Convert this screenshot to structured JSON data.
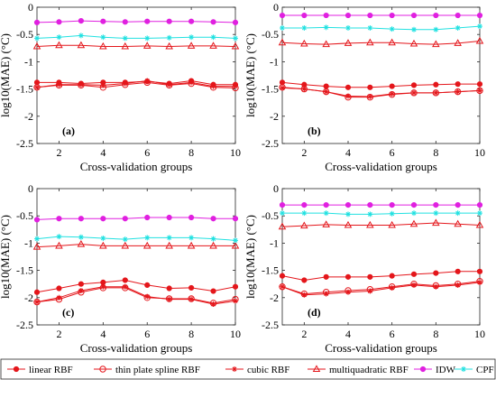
{
  "chart_data": [
    {
      "type": "line",
      "panel_label": "(a)",
      "xlabel": "Cross-validation groups",
      "ylabel": "log10(MAE) (°C)",
      "xlim": [
        1,
        10
      ],
      "ylim": [
        -2.5,
        0
      ],
      "x": [
        1,
        2,
        3,
        4,
        5,
        6,
        7,
        8,
        9,
        10
      ],
      "series": [
        {
          "name": "linear RBF",
          "values": [
            -1.38,
            -1.38,
            -1.4,
            -1.38,
            -1.38,
            -1.36,
            -1.4,
            -1.35,
            -1.42,
            -1.42
          ]
        },
        {
          "name": "thin plate spline RBF",
          "values": [
            -1.47,
            -1.43,
            -1.43,
            -1.47,
            -1.42,
            -1.38,
            -1.43,
            -1.4,
            -1.47,
            -1.48
          ]
        },
        {
          "name": "cubic RBF",
          "values": [
            -1.47,
            -1.42,
            -1.42,
            -1.43,
            -1.4,
            -1.35,
            -1.42,
            -1.38,
            -1.45,
            -1.45
          ]
        },
        {
          "name": "multiquadratic RBF",
          "values": [
            -0.72,
            -0.7,
            -0.7,
            -0.72,
            -0.72,
            -0.71,
            -0.72,
            -0.71,
            -0.71,
            -0.72
          ]
        },
        {
          "name": "IDW",
          "values": [
            -0.28,
            -0.27,
            -0.25,
            -0.26,
            -0.27,
            -0.26,
            -0.26,
            -0.26,
            -0.27,
            -0.28
          ]
        },
        {
          "name": "CPF",
          "values": [
            -0.57,
            -0.55,
            -0.52,
            -0.55,
            -0.57,
            -0.57,
            -0.56,
            -0.55,
            -0.55,
            -0.57
          ]
        }
      ]
    },
    {
      "type": "line",
      "panel_label": "(b)",
      "xlabel": "Cross-validation groups",
      "ylabel": "log10(MAE) (°C)",
      "xlim": [
        1,
        10
      ],
      "ylim": [
        -2.5,
        0
      ],
      "x": [
        1,
        2,
        3,
        4,
        5,
        6,
        7,
        8,
        9,
        10
      ],
      "series": [
        {
          "name": "linear RBF",
          "values": [
            -1.38,
            -1.42,
            -1.45,
            -1.47,
            -1.47,
            -1.45,
            -1.43,
            -1.42,
            -1.41,
            -1.41
          ]
        },
        {
          "name": "thin plate spline RBF",
          "values": [
            -1.47,
            -1.5,
            -1.55,
            -1.65,
            -1.65,
            -1.6,
            -1.57,
            -1.57,
            -1.55,
            -1.53
          ]
        },
        {
          "name": "cubic RBF",
          "values": [
            -1.48,
            -1.5,
            -1.55,
            -1.63,
            -1.64,
            -1.59,
            -1.57,
            -1.57,
            -1.55,
            -1.53
          ]
        },
        {
          "name": "multiquadratic RBF",
          "values": [
            -0.65,
            -0.67,
            -0.68,
            -0.66,
            -0.65,
            -0.65,
            -0.67,
            -0.68,
            -0.66,
            -0.62
          ]
        },
        {
          "name": "IDW",
          "values": [
            -0.15,
            -0.15,
            -0.15,
            -0.15,
            -0.15,
            -0.15,
            -0.15,
            -0.15,
            -0.15,
            -0.15
          ]
        },
        {
          "name": "CPF",
          "values": [
            -0.38,
            -0.38,
            -0.37,
            -0.38,
            -0.38,
            -0.4,
            -0.41,
            -0.41,
            -0.38,
            -0.35
          ]
        }
      ]
    },
    {
      "type": "line",
      "panel_label": "(c)",
      "xlabel": "Cross-validation groups",
      "ylabel": "log10(MAE) (°C)",
      "xlim": [
        1,
        10
      ],
      "ylim": [
        -2.5,
        0
      ],
      "x": [
        1,
        2,
        3,
        4,
        5,
        6,
        7,
        8,
        9,
        10
      ],
      "series": [
        {
          "name": "linear RBF",
          "values": [
            -1.9,
            -1.83,
            -1.75,
            -1.72,
            -1.68,
            -1.77,
            -1.83,
            -1.82,
            -1.88,
            -1.8
          ]
        },
        {
          "name": "thin plate spline RBF",
          "values": [
            -2.08,
            -2.03,
            -1.9,
            -1.82,
            -1.82,
            -2.0,
            -2.02,
            -2.02,
            -2.1,
            -2.03
          ]
        },
        {
          "name": "cubic RBF",
          "values": [
            -2.08,
            -2.0,
            -1.87,
            -1.8,
            -1.8,
            -1.98,
            -2.03,
            -2.03,
            -2.12,
            -2.06
          ]
        },
        {
          "name": "multiquadratic RBF",
          "values": [
            -1.07,
            -1.05,
            -1.02,
            -1.05,
            -1.05,
            -1.05,
            -1.05,
            -1.05,
            -1.05,
            -1.05
          ]
        },
        {
          "name": "IDW",
          "values": [
            -0.57,
            -0.55,
            -0.55,
            -0.55,
            -0.55,
            -0.53,
            -0.53,
            -0.53,
            -0.55,
            -0.55
          ]
        },
        {
          "name": "CPF",
          "values": [
            -0.92,
            -0.88,
            -0.89,
            -0.91,
            -0.93,
            -0.9,
            -0.9,
            -0.9,
            -0.92,
            -0.95
          ]
        }
      ]
    },
    {
      "type": "line",
      "panel_label": "(d)",
      "xlabel": "Cross-validation groups",
      "ylabel": "log10(MAE) (°C)",
      "xlim": [
        1,
        10
      ],
      "ylim": [
        -2.5,
        0
      ],
      "x": [
        1,
        2,
        3,
        4,
        5,
        6,
        7,
        8,
        9,
        10
      ],
      "series": [
        {
          "name": "linear RBF",
          "values": [
            -1.6,
            -1.68,
            -1.62,
            -1.62,
            -1.62,
            -1.6,
            -1.57,
            -1.55,
            -1.52,
            -1.52
          ]
        },
        {
          "name": "thin plate spline RBF",
          "values": [
            -1.8,
            -1.93,
            -1.9,
            -1.87,
            -1.85,
            -1.8,
            -1.75,
            -1.78,
            -1.75,
            -1.7
          ]
        },
        {
          "name": "cubic RBF",
          "values": [
            -1.8,
            -1.95,
            -1.93,
            -1.9,
            -1.88,
            -1.82,
            -1.77,
            -1.8,
            -1.77,
            -1.72
          ]
        },
        {
          "name": "multiquadratic RBF",
          "values": [
            -0.7,
            -0.68,
            -0.66,
            -0.67,
            -0.67,
            -0.67,
            -0.65,
            -0.63,
            -0.65,
            -0.67
          ]
        },
        {
          "name": "IDW",
          "values": [
            -0.3,
            -0.3,
            -0.3,
            -0.3,
            -0.3,
            -0.3,
            -0.3,
            -0.3,
            -0.3,
            -0.3
          ]
        },
        {
          "name": "CPF",
          "values": [
            -0.45,
            -0.45,
            -0.45,
            -0.47,
            -0.47,
            -0.46,
            -0.45,
            -0.45,
            -0.45,
            -0.45
          ]
        }
      ]
    }
  ],
  "axes": {
    "xticks": [
      "2",
      "4",
      "6",
      "8",
      "10"
    ],
    "yticks": [
      "0",
      "-0.5",
      "-1",
      "-1.5",
      "-2",
      "-2.5"
    ]
  },
  "series_styles": [
    {
      "name": "linear RBF",
      "color": "#e4161b",
      "marker": "filled-circle"
    },
    {
      "name": "thin plate spline RBF",
      "color": "#e4161b",
      "marker": "open-circle"
    },
    {
      "name": "cubic RBF",
      "color": "#e4161b",
      "marker": "asterisk"
    },
    {
      "name": "multiquadratic RBF",
      "color": "#e4161b",
      "marker": "open-triangle"
    },
    {
      "name": "IDW",
      "color": "#e020e0",
      "marker": "filled-circle"
    },
    {
      "name": "CPF",
      "color": "#21e1e1",
      "marker": "asterisk"
    }
  ],
  "legend": {
    "placement": "bottom",
    "entries": [
      "linear RBF",
      "thin plate spline RBF",
      "cubic RBF",
      "multiquadratic RBF",
      "IDW",
      "CPF"
    ]
  }
}
